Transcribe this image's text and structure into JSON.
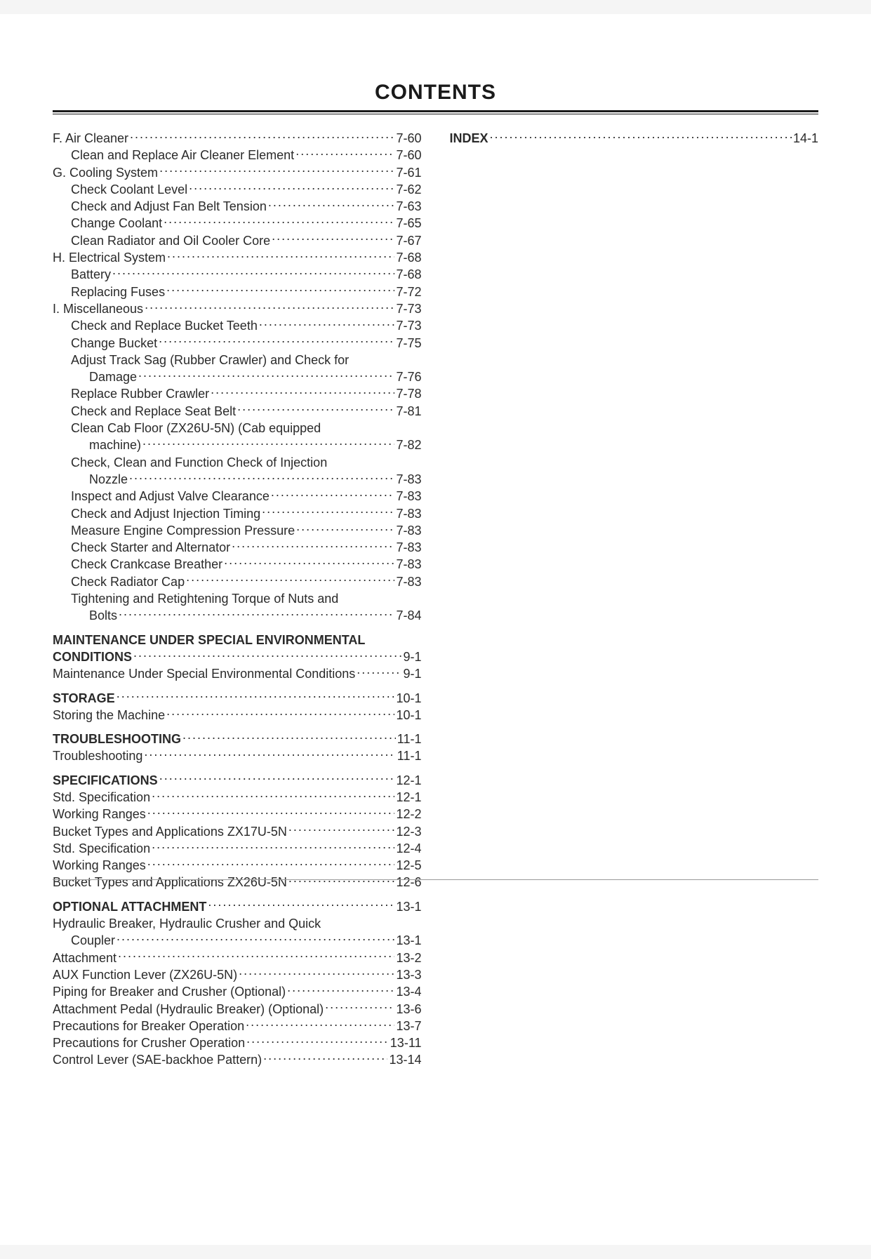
{
  "title": "CONTENTS",
  "left_column": [
    {
      "label": "F. Air Cleaner",
      "page": "7-60",
      "indent": 0,
      "bold": false
    },
    {
      "label": "Clean and Replace Air Cleaner Element",
      "page": "7-60",
      "indent": 1,
      "bold": false
    },
    {
      "label": "G. Cooling System",
      "page": "7-61",
      "indent": 0,
      "bold": false
    },
    {
      "label": "Check Coolant Level",
      "page": "7-62",
      "indent": 1,
      "bold": false
    },
    {
      "label": "Check and Adjust Fan Belt Tension",
      "page": "7-63",
      "indent": 1,
      "bold": false
    },
    {
      "label": "Change Coolant",
      "page": "7-65",
      "indent": 1,
      "bold": false
    },
    {
      "label": "Clean Radiator and Oil Cooler Core",
      "page": "7-67",
      "indent": 1,
      "bold": false
    },
    {
      "label": "H. Electrical System",
      "page": "7-68",
      "indent": 0,
      "bold": false
    },
    {
      "label": "Battery",
      "page": "7-68",
      "indent": 1,
      "bold": false
    },
    {
      "label": "Replacing Fuses",
      "page": "7-72",
      "indent": 1,
      "bold": false
    },
    {
      "label": "I. Miscellaneous",
      "page": "7-73",
      "indent": 0,
      "bold": false
    },
    {
      "label": "Check and Replace Bucket Teeth",
      "page": "7-73",
      "indent": 1,
      "bold": false
    },
    {
      "label": "Change Bucket",
      "page": "7-75",
      "indent": 1,
      "bold": false
    },
    {
      "label": "Adjust Track Sag (Rubber Crawler) and Check for",
      "page": "",
      "indent": 1,
      "bold": false,
      "nowrap_leader": true
    },
    {
      "label": "Damage",
      "page": "7-76",
      "indent": 2,
      "bold": false
    },
    {
      "label": "Replace Rubber Crawler",
      "page": "7-78",
      "indent": 1,
      "bold": false
    },
    {
      "label": "Check and Replace Seat Belt",
      "page": "7-81",
      "indent": 1,
      "bold": false
    },
    {
      "label": "Clean Cab Floor (ZX26U-5N) (Cab equipped",
      "page": "",
      "indent": 1,
      "bold": false,
      "nowrap_leader": true
    },
    {
      "label": "machine)",
      "page": "7-82",
      "indent": 2,
      "bold": false
    },
    {
      "label": "Check, Clean and Function Check of Injection",
      "page": "",
      "indent": 1,
      "bold": false,
      "nowrap_leader": true
    },
    {
      "label": "Nozzle",
      "page": "7-83",
      "indent": 2,
      "bold": false
    },
    {
      "label": "Inspect and Adjust Valve Clearance",
      "page": "7-83",
      "indent": 1,
      "bold": false
    },
    {
      "label": "Check and Adjust Injection Timing",
      "page": "7-83",
      "indent": 1,
      "bold": false
    },
    {
      "label": "Measure Engine Compression Pressure",
      "page": "7-83",
      "indent": 1,
      "bold": false
    },
    {
      "label": "Check Starter and Alternator",
      "page": "7-83",
      "indent": 1,
      "bold": false
    },
    {
      "label": "Check Crankcase Breather",
      "page": "7-83",
      "indent": 1,
      "bold": false
    },
    {
      "label": "Check Radiator Cap",
      "page": "7-83",
      "indent": 1,
      "bold": false
    },
    {
      "label": "Tightening and Retightening Torque of Nuts and",
      "page": "",
      "indent": 1,
      "bold": false,
      "nowrap_leader": true
    },
    {
      "label": "Bolts",
      "page": "7-84",
      "indent": 2,
      "bold": false
    },
    {
      "label": "MAINTENANCE UNDER SPECIAL ENVIRONMENTAL",
      "page": "",
      "indent": 0,
      "bold": true,
      "nowrap_leader": true,
      "gap": true
    },
    {
      "label_prefix_bold": "CONDITIONS",
      "label_rest": "",
      "page": "9-1",
      "indent": 0,
      "bold": true
    },
    {
      "label": "Maintenance Under Special Environmental Conditions",
      "page": "9-1",
      "indent": 0,
      "bold": false
    },
    {
      "label": "STORAGE",
      "page": "10-1",
      "indent": 0,
      "bold": true,
      "gap": true
    },
    {
      "label": "Storing the Machine",
      "page": "10-1",
      "indent": 0,
      "bold": false
    },
    {
      "label": "TROUBLESHOOTING",
      "page": "11-1",
      "indent": 0,
      "bold": true,
      "gap": true
    },
    {
      "label": "Troubleshooting",
      "page": "11-1",
      "indent": 0,
      "bold": false
    },
    {
      "label": "SPECIFICATIONS",
      "page": "12-1",
      "indent": 0,
      "bold": true,
      "gap": true
    },
    {
      "label": "Std. Specification",
      "page": "12-1",
      "indent": 0,
      "bold": false
    },
    {
      "label": "Working Ranges",
      "page": "12-2",
      "indent": 0,
      "bold": false
    },
    {
      "label": "Bucket Types and Applications ZX17U-5N",
      "page": "12-3",
      "indent": 0,
      "bold": false
    },
    {
      "label": "Std. Specification",
      "page": "12-4",
      "indent": 0,
      "bold": false
    },
    {
      "label": "Working Ranges",
      "page": "12-5",
      "indent": 0,
      "bold": false
    },
    {
      "label": "Bucket Types and Applications ZX26U-5N",
      "page": "12-6",
      "indent": 0,
      "bold": false
    },
    {
      "label": "OPTIONAL ATTACHMENT",
      "page": "13-1",
      "indent": 0,
      "bold": true,
      "gap": true
    },
    {
      "label": "Hydraulic Breaker, Hydraulic Crusher and Quick",
      "page": "",
      "indent": 0,
      "bold": false,
      "nowrap_leader": true
    },
    {
      "label": "Coupler",
      "page": "13-1",
      "indent": 1,
      "bold": false
    },
    {
      "label": "Attachment",
      "page": "13-2",
      "indent": 0,
      "bold": false
    },
    {
      "label": "AUX Function Lever (ZX26U-5N)",
      "page": "13-3",
      "indent": 0,
      "bold": false
    },
    {
      "label": "Piping for Breaker and Crusher (Optional)",
      "page": "13-4",
      "indent": 0,
      "bold": false
    },
    {
      "label": "Attachment Pedal (Hydraulic Breaker) (Optional)",
      "page": "13-6",
      "indent": 0,
      "bold": false
    },
    {
      "label": "Precautions for Breaker Operation",
      "page": "13-7",
      "indent": 0,
      "bold": false
    },
    {
      "label": "Precautions for Crusher Operation",
      "page": "13-11",
      "indent": 0,
      "bold": false
    },
    {
      "label": "Control Lever (SAE-backhoe Pattern)",
      "page": "13-14",
      "indent": 0,
      "bold": false
    }
  ],
  "right_column": [
    {
      "label": "INDEX",
      "page": "14-1",
      "indent": 0,
      "bold": true
    }
  ]
}
